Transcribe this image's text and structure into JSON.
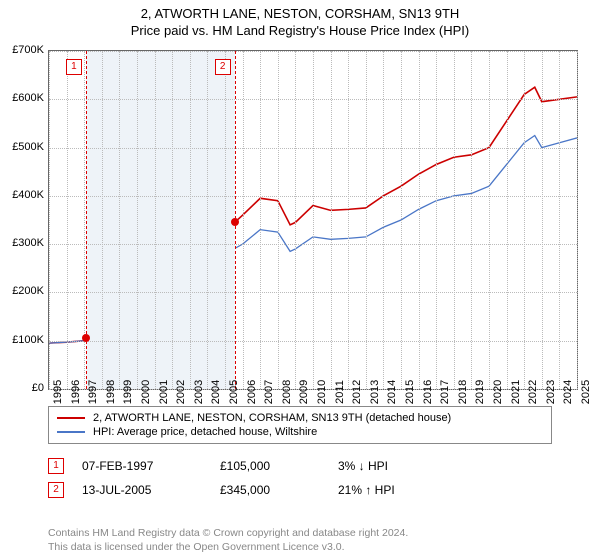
{
  "title_line1": "2, ATWORTH LANE, NESTON, CORSHAM, SN13 9TH",
  "title_line2": "Price paid vs. HM Land Registry's House Price Index (HPI)",
  "chart": {
    "type": "line",
    "background_color": "#ffffff",
    "grid_color": "#bbbbbb",
    "shade_color": "#eef3f8",
    "x": {
      "min": 1995,
      "max": 2025,
      "ticks": [
        1995,
        1996,
        1997,
        1998,
        1999,
        2000,
        2001,
        2002,
        2003,
        2004,
        2005,
        2006,
        2007,
        2008,
        2009,
        2010,
        2011,
        2012,
        2013,
        2014,
        2015,
        2016,
        2017,
        2018,
        2019,
        2020,
        2021,
        2022,
        2023,
        2024,
        2025
      ]
    },
    "y": {
      "min": 0,
      "max": 700000,
      "ticks": [
        0,
        100000,
        200000,
        300000,
        400000,
        500000,
        600000,
        700000
      ],
      "prefix": "£",
      "suffix_k": true
    },
    "shade_ranges": [
      [
        1997.1,
        2005.55
      ]
    ],
    "sale_lines_x": [
      1997.1,
      2005.55
    ],
    "series": [
      {
        "name": "2, ATWORTH LANE, NESTON, CORSHAM, SN13 9TH (detached house)",
        "color": "#cc0000",
        "width": 1.6,
        "points": [
          [
            1995,
            95000
          ],
          [
            1996,
            97000
          ],
          [
            1997,
            100000
          ],
          [
            1997.1,
            105000
          ],
          [
            1998,
            115000
          ],
          [
            1999,
            130000
          ],
          [
            2000,
            150000
          ],
          [
            2001,
            170000
          ],
          [
            2002,
            205000
          ],
          [
            2003,
            240000
          ],
          [
            2004,
            270000
          ],
          [
            2005,
            300000
          ],
          [
            2005.55,
            345000
          ],
          [
            2006,
            360000
          ],
          [
            2007,
            395000
          ],
          [
            2008,
            390000
          ],
          [
            2008.7,
            340000
          ],
          [
            2009,
            345000
          ],
          [
            2010,
            380000
          ],
          [
            2011,
            370000
          ],
          [
            2012,
            372000
          ],
          [
            2013,
            375000
          ],
          [
            2014,
            400000
          ],
          [
            2015,
            420000
          ],
          [
            2016,
            445000
          ],
          [
            2017,
            465000
          ],
          [
            2018,
            480000
          ],
          [
            2019,
            485000
          ],
          [
            2020,
            500000
          ],
          [
            2021,
            555000
          ],
          [
            2022,
            610000
          ],
          [
            2022.6,
            625000
          ],
          [
            2023,
            595000
          ],
          [
            2024,
            600000
          ],
          [
            2025,
            605000
          ]
        ]
      },
      {
        "name": "HPI: Average price, detached house, Wiltshire",
        "color": "#4a76c7",
        "width": 1.3,
        "points": [
          [
            1995,
            95000
          ],
          [
            1996,
            97000
          ],
          [
            1997,
            100000
          ],
          [
            1998,
            110000
          ],
          [
            1999,
            125000
          ],
          [
            2000,
            145000
          ],
          [
            2001,
            160000
          ],
          [
            2002,
            195000
          ],
          [
            2003,
            225000
          ],
          [
            2004,
            255000
          ],
          [
            2005,
            280000
          ],
          [
            2006,
            300000
          ],
          [
            2007,
            330000
          ],
          [
            2008,
            325000
          ],
          [
            2008.7,
            285000
          ],
          [
            2009,
            290000
          ],
          [
            2010,
            315000
          ],
          [
            2011,
            310000
          ],
          [
            2012,
            312000
          ],
          [
            2013,
            315000
          ],
          [
            2014,
            335000
          ],
          [
            2015,
            350000
          ],
          [
            2016,
            372000
          ],
          [
            2017,
            390000
          ],
          [
            2018,
            400000
          ],
          [
            2019,
            405000
          ],
          [
            2020,
            420000
          ],
          [
            2021,
            465000
          ],
          [
            2022,
            510000
          ],
          [
            2022.6,
            525000
          ],
          [
            2023,
            500000
          ],
          [
            2024,
            510000
          ],
          [
            2025,
            520000
          ]
        ]
      }
    ],
    "sale_markers": [
      {
        "n": "1",
        "x": 1997.1,
        "y": 105000
      },
      {
        "n": "2",
        "x": 2005.55,
        "y": 345000
      }
    ]
  },
  "legend": {
    "items": [
      {
        "color": "#cc0000",
        "label": "2, ATWORTH LANE, NESTON, CORSHAM, SN13 9TH (detached house)"
      },
      {
        "color": "#4a76c7",
        "label": "HPI: Average price, detached house, Wiltshire"
      }
    ]
  },
  "sales": [
    {
      "n": "1",
      "date": "07-FEB-1997",
      "price": "£105,000",
      "delta": "3% ↓ HPI"
    },
    {
      "n": "2",
      "date": "13-JUL-2005",
      "price": "£345,000",
      "delta": "21% ↑ HPI"
    }
  ],
  "footer_line1": "Contains HM Land Registry data © Crown copyright and database right 2024.",
  "footer_line2": "This data is licensed under the Open Government Licence v3.0."
}
